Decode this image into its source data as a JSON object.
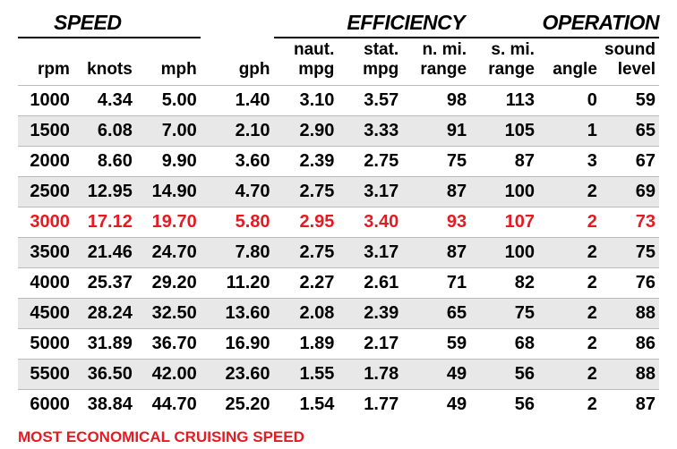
{
  "groups": {
    "speed": "SPEED",
    "efficiency": "EFFICIENCY",
    "operation": "OPERATION"
  },
  "columns": [
    {
      "top": "",
      "bottom": "rpm"
    },
    {
      "top": "",
      "bottom": "knots"
    },
    {
      "top": "",
      "bottom": "mph"
    },
    {
      "top": "",
      "bottom": "gph"
    },
    {
      "top": "naut.",
      "bottom": "mpg"
    },
    {
      "top": "stat.",
      "bottom": "mpg"
    },
    {
      "top": "n. mi.",
      "bottom": "range"
    },
    {
      "top": "s. mi.",
      "bottom": "range"
    },
    {
      "top": "",
      "bottom": "angle"
    },
    {
      "top": "sound",
      "bottom": "level"
    }
  ],
  "rows": [
    {
      "stripe": false,
      "highlight": false,
      "cells": [
        "1000",
        "4.34",
        "5.00",
        "1.40",
        "3.10",
        "3.57",
        "98",
        "113",
        "0",
        "59"
      ]
    },
    {
      "stripe": true,
      "highlight": false,
      "cells": [
        "1500",
        "6.08",
        "7.00",
        "2.10",
        "2.90",
        "3.33",
        "91",
        "105",
        "1",
        "65"
      ]
    },
    {
      "stripe": false,
      "highlight": false,
      "cells": [
        "2000",
        "8.60",
        "9.90",
        "3.60",
        "2.39",
        "2.75",
        "75",
        "87",
        "3",
        "67"
      ]
    },
    {
      "stripe": true,
      "highlight": false,
      "cells": [
        "2500",
        "12.95",
        "14.90",
        "4.70",
        "2.75",
        "3.17",
        "87",
        "100",
        "2",
        "69"
      ]
    },
    {
      "stripe": false,
      "highlight": true,
      "cells": [
        "3000",
        "17.12",
        "19.70",
        "5.80",
        "2.95",
        "3.40",
        "93",
        "107",
        "2",
        "73"
      ]
    },
    {
      "stripe": true,
      "highlight": false,
      "cells": [
        "3500",
        "21.46",
        "24.70",
        "7.80",
        "2.75",
        "3.17",
        "87",
        "100",
        "2",
        "75"
      ]
    },
    {
      "stripe": false,
      "highlight": false,
      "cells": [
        "4000",
        "25.37",
        "29.20",
        "11.20",
        "2.27",
        "2.61",
        "71",
        "82",
        "2",
        "76"
      ]
    },
    {
      "stripe": true,
      "highlight": false,
      "cells": [
        "4500",
        "28.24",
        "32.50",
        "13.60",
        "2.08",
        "2.39",
        "65",
        "75",
        "2",
        "88"
      ]
    },
    {
      "stripe": false,
      "highlight": false,
      "cells": [
        "5000",
        "31.89",
        "36.70",
        "16.90",
        "1.89",
        "2.17",
        "59",
        "68",
        "2",
        "86"
      ]
    },
    {
      "stripe": true,
      "highlight": false,
      "cells": [
        "5500",
        "36.50",
        "42.00",
        "23.60",
        "1.55",
        "1.78",
        "49",
        "56",
        "2",
        "88"
      ]
    },
    {
      "stripe": false,
      "highlight": false,
      "cells": [
        "6000",
        "38.84",
        "44.70",
        "25.20",
        "1.54",
        "1.77",
        "49",
        "56",
        "2",
        "87"
      ]
    }
  ],
  "footer": "MOST ECONOMICAL CRUISING SPEED",
  "highlight_color": "#e31b23",
  "stripe_color": "#e8e8e8",
  "text_color": "#000000"
}
